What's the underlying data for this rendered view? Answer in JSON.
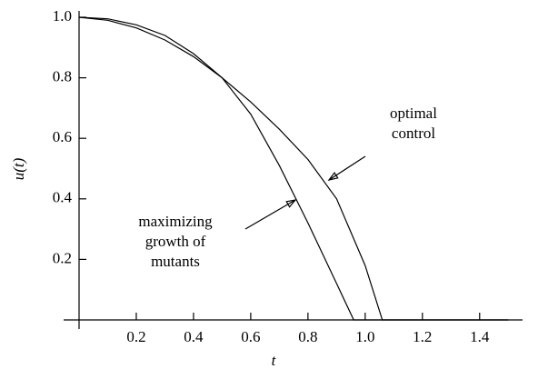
{
  "chart_data": {
    "type": "line",
    "xlabel": "t",
    "ylabel": "u(t)",
    "xlim": [
      0,
      1.55
    ],
    "ylim": [
      0,
      1.0
    ],
    "xticks": [
      0.2,
      0.4,
      0.6,
      0.8,
      {
        "value": 1,
        "label": "1.0"
      },
      1.2,
      1.4
    ],
    "yticks": [
      0.2,
      0.4,
      0.6,
      0.8,
      {
        "value": 1,
        "label": "1.0"
      }
    ],
    "series": [
      {
        "name": "maximizing growth of mutants",
        "color": "#000000",
        "x": [
          0,
          0.1,
          0.2,
          0.3,
          0.4,
          0.5,
          0.6,
          0.7,
          0.8,
          0.9,
          0.96,
          1.5
        ],
        "values": [
          1.0,
          0.995,
          0.975,
          0.94,
          0.88,
          0.8,
          0.68,
          0.51,
          0.32,
          0.12,
          0,
          0
        ]
      },
      {
        "name": "optimal control",
        "color": "#000000",
        "x": [
          0,
          0.1,
          0.2,
          0.3,
          0.4,
          0.5,
          0.6,
          0.7,
          0.8,
          0.9,
          1.0,
          1.06,
          1.5
        ],
        "values": [
          1.0,
          0.99,
          0.965,
          0.925,
          0.87,
          0.8,
          0.72,
          0.63,
          0.53,
          0.4,
          0.18,
          0,
          0
        ]
      }
    ],
    "annotations": [
      {
        "lines": [
          "optimal",
          "control"
        ]
      },
      {
        "lines": [
          "maximizing",
          "growth of",
          "mutants"
        ]
      }
    ]
  }
}
